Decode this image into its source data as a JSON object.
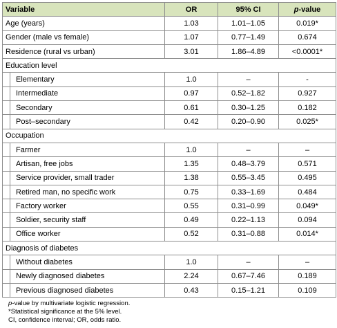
{
  "table": {
    "header": [
      "Variable",
      "OR",
      "95% CI",
      {
        "em": "p",
        "text": "-value"
      }
    ],
    "rows": [
      [
        "Age (years)",
        "1.03",
        "1.01–1.05",
        "0.019*"
      ],
      [
        "Gender (male vs female)",
        "1.07",
        "0.77–1.49",
        "0.674"
      ],
      [
        "Residence (rural vs urban)",
        "3.01",
        "1.86–4.89",
        "<0.0001*"
      ]
    ],
    "sections": [
      {
        "title": "Education level",
        "rows": [
          [
            "Elementary",
            "1.0",
            "–",
            "-"
          ],
          [
            "Intermediate",
            "0.97",
            "0.52–1.82",
            "0.927"
          ],
          [
            "Secondary",
            "0.61",
            "0.30–1.25",
            "0.182"
          ],
          [
            "Post–secondary",
            "0.42",
            "0.20–0.90",
            "0.025*"
          ]
        ]
      },
      {
        "title": "Occupation",
        "rows": [
          [
            "Farmer",
            "1.0",
            "–",
            "–"
          ],
          [
            "Artisan, free jobs",
            "1.35",
            "0.48–3.79",
            "0.571"
          ],
          [
            "Service provider, small trader",
            "1.38",
            "0.55–3.45",
            "0.495"
          ],
          [
            "Retired man, no specific work",
            "0.75",
            "0.33–1.69",
            "0.484"
          ],
          [
            "Factory worker",
            "0.55",
            "0.31–0.99",
            "0.049*"
          ],
          [
            "Soldier, security staff",
            "0.49",
            "0.22–1.13",
            "0.094"
          ],
          [
            "Office worker",
            "0.52",
            "0.31–0.88",
            "0.014*"
          ]
        ]
      },
      {
        "title": "Diagnosis of diabetes",
        "rows": [
          [
            "Without diabetes",
            "1.0",
            "–",
            "–"
          ],
          [
            "Newly diagnosed diabetes",
            "2.24",
            "0.67–7.46",
            "0.189"
          ],
          [
            "Previous diagnosed diabetes",
            "0.43",
            "0.15–1.21",
            "0.109"
          ]
        ]
      }
    ]
  },
  "footnotes": {
    "line1": {
      "em": "p",
      "text": "-value by multivariate logistic regression."
    },
    "line2": "*Statistical significance at the 5% level.",
    "line3": "CI, confidence interval; OR, odds ratio."
  }
}
